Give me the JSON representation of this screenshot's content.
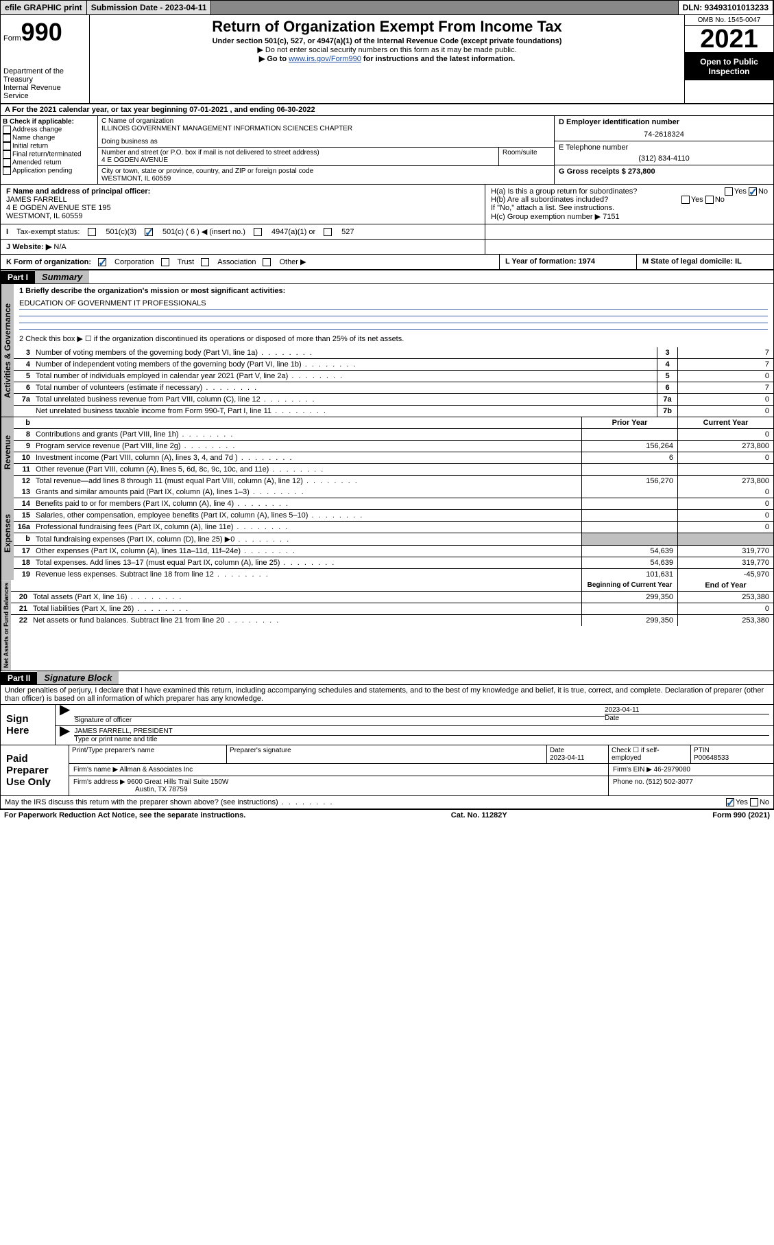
{
  "topbar": {
    "efile": "efile GRAPHIC print",
    "subdate_label": "Submission Date - 2023-04-11",
    "dln": "DLN: 93493101013233"
  },
  "header": {
    "form_small": "Form",
    "form_big": "990",
    "dept": "Department of the Treasury\nInternal Revenue Service",
    "title": "Return of Organization Exempt From Income Tax",
    "sub": "Under section 501(c), 527, or 4947(a)(1) of the Internal Revenue Code (except private foundations)",
    "note1": "▶ Do not enter social security numbers on this form as it may be made public.",
    "note2_pre": "▶ Go to ",
    "note2_link": "www.irs.gov/Form990",
    "note2_post": " for instructions and the latest information.",
    "omb": "OMB No. 1545-0047",
    "year": "2021",
    "inspect": "Open to Public Inspection"
  },
  "row_a": "A For the 2021 calendar year, or tax year beginning 07-01-2021    , and ending 06-30-2022",
  "col_b": {
    "hdr": "B Check if applicable:",
    "items": [
      "Address change",
      "Name change",
      "Initial return",
      "Final return/terminated",
      "Amended return",
      "Application pending"
    ]
  },
  "col_c": {
    "name_label": "C Name of organization",
    "name": "ILLINOIS GOVERNMENT MANAGEMENT INFORMATION SCIENCES CHAPTER",
    "dba_label": "Doing business as",
    "street_label": "Number and street (or P.O. box if mail is not delivered to street address)",
    "room_label": "Room/suite",
    "street": "4 E OGDEN AVENUE",
    "city_label": "City or town, state or province, country, and ZIP or foreign postal code",
    "city": "WESTMONT, IL  60559"
  },
  "col_d": {
    "ein_label": "D Employer identification number",
    "ein": "74-2618324",
    "tel_label": "E Telephone number",
    "tel": "(312) 834-4110",
    "gross_label": "G Gross receipts $ 273,800"
  },
  "row_f": {
    "f_label": "F Name and address of principal officer:",
    "f_val": "JAMES FARRELL\n4 E OGDEN AVENUE STE 195\nWESTMONT, IL  60559",
    "ha": "H(a)  Is this a group return for subordinates?",
    "hb": "H(b)  Are all subordinates included?",
    "hb_note": "If \"No,\" attach a list. See instructions.",
    "hc": "H(c)  Group exemption number ▶   7151",
    "yes": "Yes",
    "no": "No"
  },
  "row_i": {
    "label": "Tax-exempt status:",
    "opts": [
      "501(c)(3)",
      "501(c) ( 6 ) ◀ (insert no.)",
      "4947(a)(1) or",
      "527"
    ]
  },
  "row_j": {
    "label": "Website: ▶",
    "val": "N/A"
  },
  "row_k": {
    "label": "K Form of organization:",
    "opts": [
      "Corporation",
      "Trust",
      "Association",
      "Other ▶"
    ],
    "l": "L Year of formation: 1974",
    "m": "M State of legal domicile: IL"
  },
  "part1": {
    "hdr": "Part I",
    "title": "Summary"
  },
  "mission_label": "1   Briefly describe the organization's mission or most significant activities:",
  "mission": "EDUCATION OF GOVERNMENT IT PROFESSIONALS",
  "line2": "2   Check this box ▶ ☐  if the organization discontinued its operations or disposed of more than 25% of its net assets.",
  "gov_lines": [
    {
      "n": "3",
      "t": "Number of voting members of the governing body (Part VI, line 1a)",
      "box": "3",
      "v": "7"
    },
    {
      "n": "4",
      "t": "Number of independent voting members of the governing body (Part VI, line 1b)",
      "box": "4",
      "v": "7"
    },
    {
      "n": "5",
      "t": "Total number of individuals employed in calendar year 2021 (Part V, line 2a)",
      "box": "5",
      "v": "0"
    },
    {
      "n": "6",
      "t": "Total number of volunteers (estimate if necessary)",
      "box": "6",
      "v": "7"
    },
    {
      "n": "7a",
      "t": "Total unrelated business revenue from Part VIII, column (C), line 12",
      "box": "7a",
      "v": "0"
    },
    {
      "n": "",
      "t": "Net unrelated business taxable income from Form 990-T, Part I, line 11",
      "box": "7b",
      "v": "0"
    }
  ],
  "col_hdrs": {
    "b": "b",
    "prior": "Prior Year",
    "current": "Current Year"
  },
  "rev_lines": [
    {
      "n": "8",
      "t": "Contributions and grants (Part VIII, line 1h)",
      "p": "",
      "c": "0"
    },
    {
      "n": "9",
      "t": "Program service revenue (Part VIII, line 2g)",
      "p": "156,264",
      "c": "273,800"
    },
    {
      "n": "10",
      "t": "Investment income (Part VIII, column (A), lines 3, 4, and 7d )",
      "p": "6",
      "c": "0"
    },
    {
      "n": "11",
      "t": "Other revenue (Part VIII, column (A), lines 5, 6d, 8c, 9c, 10c, and 11e)",
      "p": "",
      "c": ""
    },
    {
      "n": "12",
      "t": "Total revenue—add lines 8 through 11 (must equal Part VIII, column (A), line 12)",
      "p": "156,270",
      "c": "273,800"
    }
  ],
  "exp_lines": [
    {
      "n": "13",
      "t": "Grants and similar amounts paid (Part IX, column (A), lines 1–3)",
      "p": "",
      "c": "0"
    },
    {
      "n": "14",
      "t": "Benefits paid to or for members (Part IX, column (A), line 4)",
      "p": "",
      "c": "0"
    },
    {
      "n": "15",
      "t": "Salaries, other compensation, employee benefits (Part IX, column (A), lines 5–10)",
      "p": "",
      "c": "0"
    },
    {
      "n": "16a",
      "t": "Professional fundraising fees (Part IX, column (A), line 11e)",
      "p": "",
      "c": "0"
    },
    {
      "n": "b",
      "t": "Total fundraising expenses (Part IX, column (D), line 25) ▶0",
      "p": "shade",
      "c": "shade"
    },
    {
      "n": "17",
      "t": "Other expenses (Part IX, column (A), lines 11a–11d, 11f–24e)",
      "p": "54,639",
      "c": "319,770"
    },
    {
      "n": "18",
      "t": "Total expenses. Add lines 13–17 (must equal Part IX, column (A), line 25)",
      "p": "54,639",
      "c": "319,770"
    },
    {
      "n": "19",
      "t": "Revenue less expenses. Subtract line 18 from line 12",
      "p": "101,631",
      "c": "-45,970"
    }
  ],
  "net_hdrs": {
    "begin": "Beginning of Current Year",
    "end": "End of Year"
  },
  "net_lines": [
    {
      "n": "20",
      "t": "Total assets (Part X, line 16)",
      "p": "299,350",
      "c": "253,380"
    },
    {
      "n": "21",
      "t": "Total liabilities (Part X, line 26)",
      "p": "",
      "c": "0"
    },
    {
      "n": "22",
      "t": "Net assets or fund balances. Subtract line 21 from line 20",
      "p": "299,350",
      "c": "253,380"
    }
  ],
  "part2": {
    "hdr": "Part II",
    "title": "Signature Block"
  },
  "penalty": "Under penalties of perjury, I declare that I have examined this return, including accompanying schedules and statements, and to the best of my knowledge and belief, it is true, correct, and complete. Declaration of preparer (other than officer) is based on all information of which preparer has any knowledge.",
  "sign": {
    "here": "Sign Here",
    "sig_label": "Signature of officer",
    "date": "2023-04-11",
    "date_label": "Date",
    "name": "JAMES FARRELL, PRESIDENT",
    "name_label": "Type or print name and title"
  },
  "paid": {
    "label": "Paid Preparer Use Only",
    "h1": "Print/Type preparer's name",
    "h2": "Preparer's signature",
    "h3": "Date",
    "h3v": "2023-04-11",
    "h4": "Check ☐ if self-employed",
    "h5": "PTIN",
    "h5v": "P00648533",
    "firm_label": "Firm's name    ▶",
    "firm": "Allman & Associates Inc",
    "ein_label": "Firm's EIN ▶",
    "ein": "46-2979080",
    "addr_label": "Firm's address ▶",
    "addr1": "9600 Great Hills Trail Suite 150W",
    "addr2": "Austin, TX  78759",
    "phone_label": "Phone no.",
    "phone": "(512) 502-3077"
  },
  "may": "May the IRS discuss this return with the preparer shown above? (see instructions)",
  "footer": {
    "l": "For Paperwork Reduction Act Notice, see the separate instructions.",
    "m": "Cat. No. 11282Y",
    "r": "Form 990 (2021)"
  },
  "labels": {
    "gov": "Activities & Governance",
    "rev": "Revenue",
    "exp": "Expenses",
    "net": "Net Assets or Fund Balances"
  }
}
